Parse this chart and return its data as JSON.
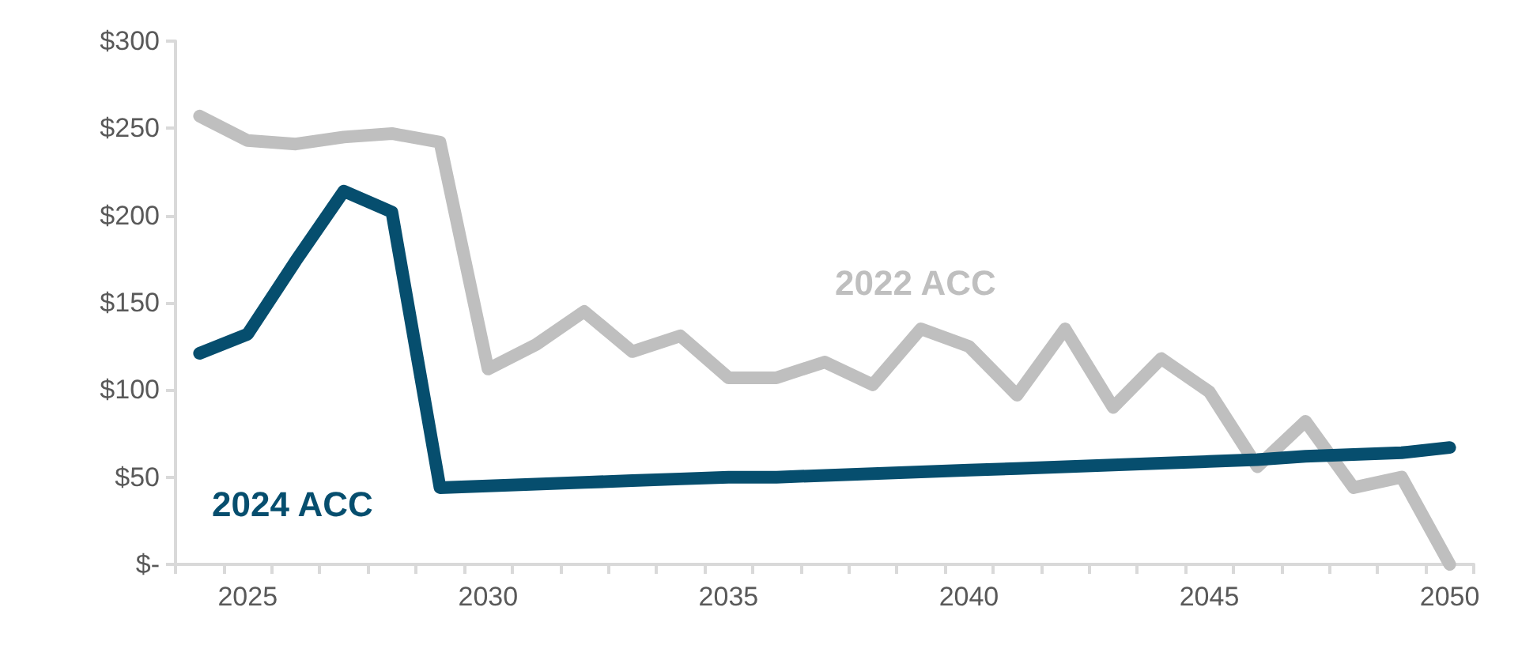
{
  "chart_data": {
    "type": "line",
    "categories": [
      null,
      "2025",
      null,
      null,
      null,
      null,
      "2030",
      null,
      null,
      null,
      null,
      "2035",
      null,
      null,
      null,
      null,
      "2040",
      null,
      null,
      null,
      null,
      "2045",
      null,
      null,
      null,
      null,
      "2050"
    ],
    "series": [
      {
        "name": "2022 ACC",
        "color": "#bfbfbf",
        "values": [
          257,
          243,
          241,
          245,
          247,
          242,
          112,
          126,
          145,
          122,
          131,
          107,
          107,
          116,
          103,
          135,
          125,
          97,
          135,
          90,
          118,
          99,
          56,
          82,
          44,
          50,
          0
        ]
      },
      {
        "name": "2024 ACC",
        "color": "#064e6e",
        "values": [
          121,
          132,
          174,
          214,
          202,
          44,
          45,
          46,
          47,
          48,
          49,
          50,
          50,
          51,
          52,
          53,
          54,
          55,
          56,
          57,
          58,
          59,
          60,
          62,
          63,
          64,
          67
        ]
      }
    ],
    "ylim": [
      0,
      300
    ],
    "yticks": [
      {
        "value": 0,
        "label": "$-"
      },
      {
        "value": 50,
        "label": "$50"
      },
      {
        "value": 100,
        "label": "$100"
      },
      {
        "value": 150,
        "label": "$150"
      },
      {
        "value": 200,
        "label": "$200"
      },
      {
        "value": 250,
        "label": "$250"
      },
      {
        "value": 300,
        "label": "$300"
      }
    ],
    "grid": false,
    "legend": false,
    "marker": "none",
    "line_style": "solid"
  }
}
